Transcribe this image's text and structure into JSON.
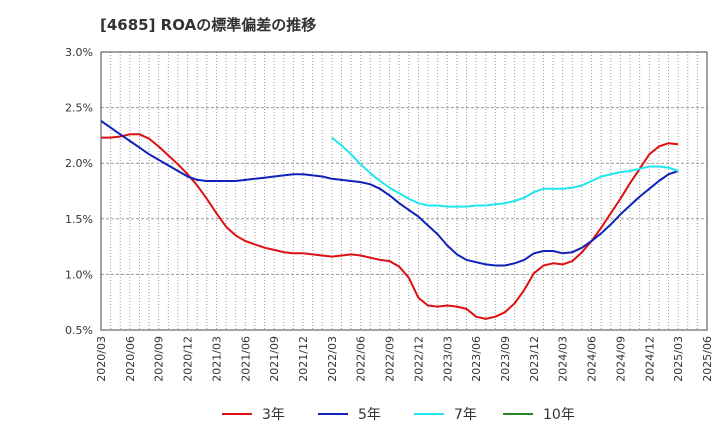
{
  "chart_data": {
    "type": "line",
    "title": "[4685]  ROAの標準偏差の推移",
    "xlabel": "",
    "ylabel": "",
    "ylim": [
      0.5,
      3.0
    ],
    "y_ticks": [
      "0.5%",
      "1.0%",
      "1.5%",
      "2.0%",
      "2.5%",
      "3.0%"
    ],
    "y_tick_values": [
      0.5,
      1.0,
      1.5,
      2.0,
      2.5,
      3.0
    ],
    "x_ticks": [
      "2020/03",
      "2020/06",
      "2020/09",
      "2020/12",
      "2021/03",
      "2021/06",
      "2021/09",
      "2021/12",
      "2022/03",
      "2022/06",
      "2022/09",
      "2022/12",
      "2023/03",
      "2023/06",
      "2023/09",
      "2023/12",
      "2024/03",
      "2024/06",
      "2024/09",
      "2024/12",
      "2025/03",
      "2025/06"
    ],
    "grid": true,
    "legend_position": "bottom",
    "series": [
      {
        "name": "3年",
        "color": "#dd1111",
        "values": [
          [
            "2020/03",
            2.23
          ],
          [
            "2020/04",
            2.23
          ],
          [
            "2020/05",
            2.24
          ],
          [
            "2020/06",
            2.26
          ],
          [
            "2020/07",
            2.26
          ],
          [
            "2020/08",
            2.22
          ],
          [
            "2020/09",
            2.15
          ],
          [
            "2020/10",
            2.07
          ],
          [
            "2020/11",
            1.99
          ],
          [
            "2020/12",
            1.9
          ],
          [
            "2021/01",
            1.8
          ],
          [
            "2021/02",
            1.68
          ],
          [
            "2021/03",
            1.55
          ],
          [
            "2021/04",
            1.43
          ],
          [
            "2021/05",
            1.35
          ],
          [
            "2021/06",
            1.3
          ],
          [
            "2021/07",
            1.27
          ],
          [
            "2021/08",
            1.24
          ],
          [
            "2021/09",
            1.22
          ],
          [
            "2021/10",
            1.2
          ],
          [
            "2021/11",
            1.19
          ],
          [
            "2021/12",
            1.19
          ],
          [
            "2022/01",
            1.18
          ],
          [
            "2022/02",
            1.17
          ],
          [
            "2022/03",
            1.16
          ],
          [
            "2022/04",
            1.17
          ],
          [
            "2022/05",
            1.18
          ],
          [
            "2022/06",
            1.17
          ],
          [
            "2022/07",
            1.15
          ],
          [
            "2022/08",
            1.13
          ],
          [
            "2022/09",
            1.12
          ],
          [
            "2022/10",
            1.07
          ],
          [
            "2022/11",
            0.97
          ],
          [
            "2022/12",
            0.79
          ],
          [
            "2023/01",
            0.72
          ],
          [
            "2023/02",
            0.71
          ],
          [
            "2023/03",
            0.72
          ],
          [
            "2023/04",
            0.71
          ],
          [
            "2023/05",
            0.69
          ],
          [
            "2023/06",
            0.62
          ],
          [
            "2023/07",
            0.6
          ],
          [
            "2023/08",
            0.62
          ],
          [
            "2023/09",
            0.66
          ],
          [
            "2023/10",
            0.74
          ],
          [
            "2023/11",
            0.86
          ],
          [
            "2023/12",
            1.01
          ],
          [
            "2024/01",
            1.08
          ],
          [
            "2024/02",
            1.1
          ],
          [
            "2024/03",
            1.09
          ],
          [
            "2024/04",
            1.12
          ],
          [
            "2024/05",
            1.2
          ],
          [
            "2024/06",
            1.3
          ],
          [
            "2024/07",
            1.42
          ],
          [
            "2024/08",
            1.55
          ],
          [
            "2024/09",
            1.68
          ],
          [
            "2024/10",
            1.82
          ],
          [
            "2024/11",
            1.95
          ],
          [
            "2024/12",
            2.08
          ],
          [
            "2025/01",
            2.15
          ],
          [
            "2025/02",
            2.18
          ],
          [
            "2025/03",
            2.17
          ]
        ]
      },
      {
        "name": "5年",
        "color": "#1122bb",
        "values": [
          [
            "2020/03",
            2.38
          ],
          [
            "2020/04",
            2.32
          ],
          [
            "2020/05",
            2.26
          ],
          [
            "2020/06",
            2.2
          ],
          [
            "2020/07",
            2.14
          ],
          [
            "2020/08",
            2.08
          ],
          [
            "2020/09",
            2.03
          ],
          [
            "2020/10",
            1.98
          ],
          [
            "2020/11",
            1.93
          ],
          [
            "2020/12",
            1.88
          ],
          [
            "2021/01",
            1.85
          ],
          [
            "2021/02",
            1.84
          ],
          [
            "2021/03",
            1.84
          ],
          [
            "2021/04",
            1.84
          ],
          [
            "2021/05",
            1.84
          ],
          [
            "2021/06",
            1.85
          ],
          [
            "2021/07",
            1.86
          ],
          [
            "2021/08",
            1.87
          ],
          [
            "2021/09",
            1.88
          ],
          [
            "2021/10",
            1.89
          ],
          [
            "2021/11",
            1.9
          ],
          [
            "2021/12",
            1.9
          ],
          [
            "2022/01",
            1.89
          ],
          [
            "2022/02",
            1.88
          ],
          [
            "2022/03",
            1.86
          ],
          [
            "2022/04",
            1.85
          ],
          [
            "2022/05",
            1.84
          ],
          [
            "2022/06",
            1.83
          ],
          [
            "2022/07",
            1.81
          ],
          [
            "2022/08",
            1.77
          ],
          [
            "2022/09",
            1.71
          ],
          [
            "2022/10",
            1.64
          ],
          [
            "2022/11",
            1.58
          ],
          [
            "2022/12",
            1.52
          ],
          [
            "2023/01",
            1.44
          ],
          [
            "2023/02",
            1.36
          ],
          [
            "2023/03",
            1.26
          ],
          [
            "2023/04",
            1.18
          ],
          [
            "2023/05",
            1.13
          ],
          [
            "2023/06",
            1.11
          ],
          [
            "2023/07",
            1.09
          ],
          [
            "2023/08",
            1.08
          ],
          [
            "2023/09",
            1.08
          ],
          [
            "2023/10",
            1.1
          ],
          [
            "2023/11",
            1.13
          ],
          [
            "2023/12",
            1.19
          ],
          [
            "2024/01",
            1.21
          ],
          [
            "2024/02",
            1.21
          ],
          [
            "2024/03",
            1.19
          ],
          [
            "2024/04",
            1.2
          ],
          [
            "2024/05",
            1.24
          ],
          [
            "2024/06",
            1.3
          ],
          [
            "2024/07",
            1.37
          ],
          [
            "2024/08",
            1.45
          ],
          [
            "2024/09",
            1.54
          ],
          [
            "2024/10",
            1.62
          ],
          [
            "2024/11",
            1.7
          ],
          [
            "2024/12",
            1.77
          ],
          [
            "2025/01",
            1.84
          ],
          [
            "2025/02",
            1.9
          ],
          [
            "2025/03",
            1.93
          ]
        ]
      },
      {
        "name": "7年",
        "color": "#22e5ee",
        "values": [
          [
            "2022/03",
            2.23
          ],
          [
            "2022/04",
            2.16
          ],
          [
            "2022/05",
            2.08
          ],
          [
            "2022/06",
            1.99
          ],
          [
            "2022/07",
            1.91
          ],
          [
            "2022/08",
            1.84
          ],
          [
            "2022/09",
            1.78
          ],
          [
            "2022/10",
            1.73
          ],
          [
            "2022/11",
            1.68
          ],
          [
            "2022/12",
            1.64
          ],
          [
            "2023/01",
            1.62
          ],
          [
            "2023/02",
            1.62
          ],
          [
            "2023/03",
            1.61
          ],
          [
            "2023/04",
            1.61
          ],
          [
            "2023/05",
            1.61
          ],
          [
            "2023/06",
            1.62
          ],
          [
            "2023/07",
            1.62
          ],
          [
            "2023/08",
            1.63
          ],
          [
            "2023/09",
            1.64
          ],
          [
            "2023/10",
            1.66
          ],
          [
            "2023/11",
            1.69
          ],
          [
            "2023/12",
            1.74
          ],
          [
            "2024/01",
            1.77
          ],
          [
            "2024/02",
            1.77
          ],
          [
            "2024/03",
            1.77
          ],
          [
            "2024/04",
            1.78
          ],
          [
            "2024/05",
            1.8
          ],
          [
            "2024/06",
            1.84
          ],
          [
            "2024/07",
            1.88
          ],
          [
            "2024/08",
            1.9
          ],
          [
            "2024/09",
            1.92
          ],
          [
            "2024/10",
            1.93
          ],
          [
            "2024/11",
            1.95
          ],
          [
            "2024/12",
            1.97
          ],
          [
            "2025/01",
            1.97
          ],
          [
            "2025/02",
            1.96
          ],
          [
            "2025/03",
            1.93
          ]
        ]
      },
      {
        "name": "10年",
        "color": "#228822",
        "values": []
      }
    ]
  }
}
